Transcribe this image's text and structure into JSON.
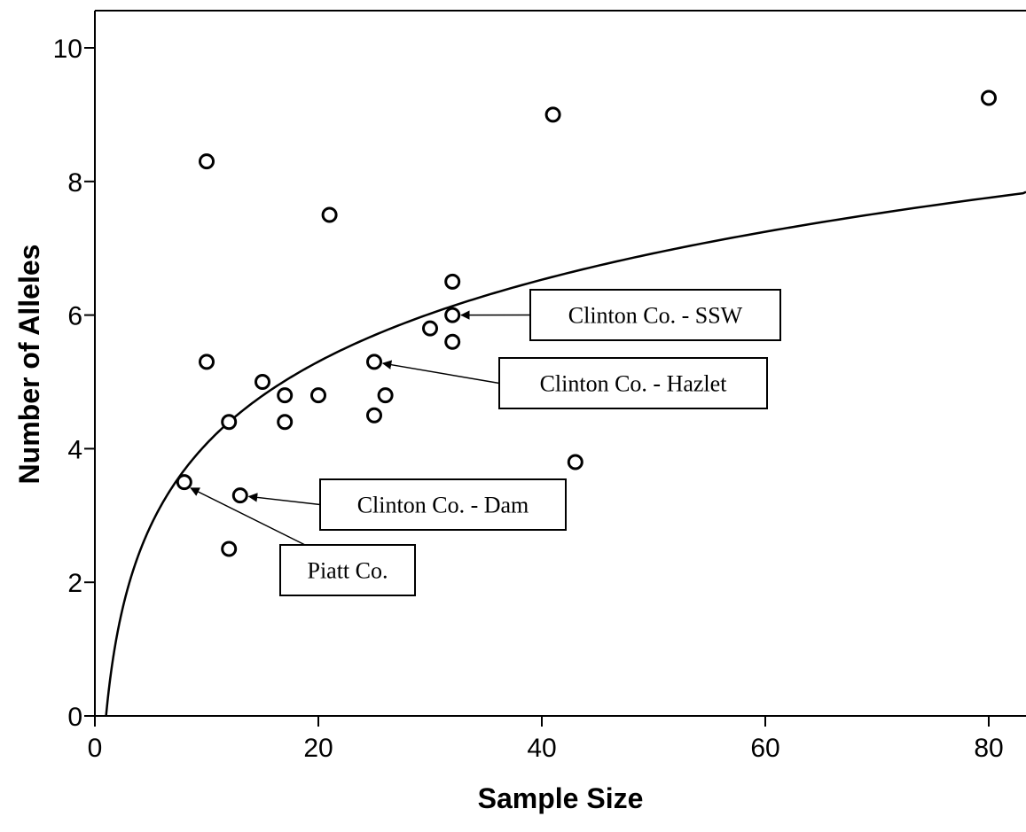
{
  "chart_data": {
    "type": "scatter",
    "title": "",
    "xlabel": "Sample Size",
    "ylabel": "Number of Alleles",
    "xlim": [
      0,
      84
    ],
    "ylim": [
      0,
      10.5
    ],
    "xticks": [
      0,
      20,
      40,
      60,
      80
    ],
    "xtick_labels": [
      "0",
      "20",
      "40",
      "60",
      "80"
    ],
    "yticks": [
      0,
      2,
      4,
      6,
      8,
      10
    ],
    "ytick_labels": [
      "0",
      "2",
      "4",
      "6",
      "8",
      "10"
    ],
    "grid": false,
    "legend": "none",
    "series": [
      {
        "marker": "open-circle",
        "points": [
          {
            "x": 8,
            "y": 3.5
          },
          {
            "x": 10,
            "y": 8.3
          },
          {
            "x": 10,
            "y": 5.3
          },
          {
            "x": 12,
            "y": 4.4
          },
          {
            "x": 12,
            "y": 2.5
          },
          {
            "x": 13,
            "y": 3.3
          },
          {
            "x": 15,
            "y": 5.0
          },
          {
            "x": 17,
            "y": 4.8
          },
          {
            "x": 17,
            "y": 4.4
          },
          {
            "x": 20,
            "y": 4.8
          },
          {
            "x": 21,
            "y": 7.5
          },
          {
            "x": 25,
            "y": 5.3
          },
          {
            "x": 25,
            "y": 4.5
          },
          {
            "x": 26,
            "y": 4.8
          },
          {
            "x": 30,
            "y": 5.8
          },
          {
            "x": 32,
            "y": 6.5
          },
          {
            "x": 32,
            "y": 6.0
          },
          {
            "x": 32,
            "y": 5.6
          },
          {
            "x": 41,
            "y": 9.0
          },
          {
            "x": 43,
            "y": 3.8
          },
          {
            "x": 80,
            "y": 9.25
          }
        ]
      }
    ],
    "fit_curve": {
      "type": "logarithmic",
      "equation_form": "y = a * ln(x)",
      "a": 1.77,
      "x_start": 1,
      "x_end": 84
    },
    "annotations": [
      {
        "text": "Clinton Co. - SSW",
        "points_to": {
          "x": 32,
          "y": 6.0
        }
      },
      {
        "text": "Clinton Co. - Hazlet",
        "points_to": {
          "x": 25,
          "y": 5.3
        }
      },
      {
        "text": "Clinton Co. - Dam",
        "points_to": {
          "x": 13,
          "y": 3.3
        }
      },
      {
        "text": "Piatt Co.",
        "points_to": {
          "x": 8,
          "y": 3.5
        }
      }
    ],
    "colors": {
      "ink": "#000000",
      "background": "#ffffff"
    }
  }
}
